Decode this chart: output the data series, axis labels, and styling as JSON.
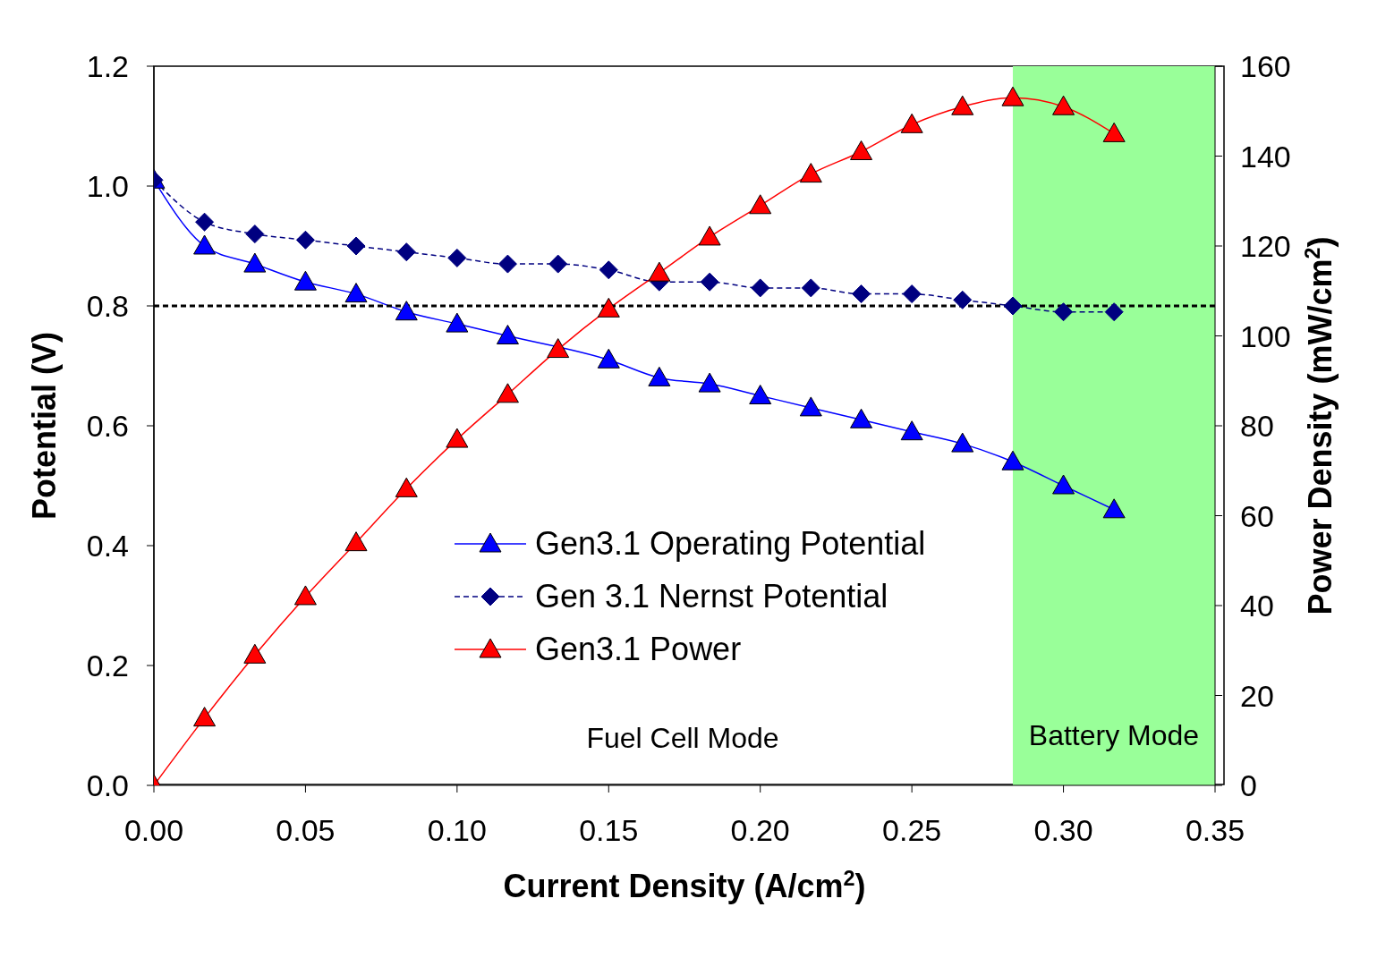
{
  "chart_data": {
    "type": "line",
    "xlabel": "Current Density (A/cm$^{2}$)",
    "ylabel": "Potential (V)",
    "y2label": "Power Density (mW/cm$^{2}$)",
    "x": [
      0,
      0.0167,
      0.0333,
      0.05,
      0.0667,
      0.0833,
      0.1,
      0.1167,
      0.1333,
      0.15,
      0.1667,
      0.1833,
      0.2,
      0.2167,
      0.2333,
      0.25,
      0.2667,
      0.2833,
      0.3,
      0.3167
    ],
    "series": [
      {
        "name": "Gen3.1 Operating Potential",
        "color": "#0000ff",
        "marker": "triangle",
        "line_style": "solid",
        "values": [
          1.01,
          0.9,
          0.87,
          0.84,
          0.82,
          0.79,
          0.77,
          0.75,
          null,
          0.71,
          0.68,
          0.67,
          0.65,
          0.63,
          0.61,
          0.59,
          0.57,
          0.54,
          0.5,
          0.46
        ]
      },
      {
        "name": "Gen 3.1 Nernst Potential",
        "color": "#000080",
        "marker": "diamond",
        "line_style": "dashed",
        "values": [
          1.01,
          0.94,
          0.92,
          0.91,
          0.9,
          0.89,
          0.88,
          0.87,
          0.87,
          0.86,
          0.84,
          0.84,
          0.83,
          0.83,
          0.82,
          0.82,
          0.81,
          0.8,
          0.79,
          0.79
        ]
      },
      {
        "name": "Gen3.1 Power",
        "color": "#ff0000",
        "marker": "triangle",
        "line_style": "solid",
        "axis": "y2",
        "values": [
          0,
          15,
          29,
          42,
          54,
          66,
          77,
          87,
          97,
          106,
          114,
          122,
          129,
          136,
          141,
          147,
          151,
          153,
          151,
          145
        ]
      }
    ],
    "xlim": [
      0,
      0.35
    ],
    "xticks": [
      {
        "value": 0,
        "label": "0.00"
      },
      {
        "value": 0.05,
        "label": "0.05"
      },
      {
        "value": 0.1,
        "label": "0.10"
      },
      {
        "value": 0.15,
        "label": "0.15"
      },
      {
        "value": 0.2,
        "label": "0.20"
      },
      {
        "value": 0.25,
        "label": "0.25"
      },
      {
        "value": 0.3,
        "label": "0.30"
      },
      {
        "value": 0.35,
        "label": "0.35"
      }
    ],
    "ylim": [
      0,
      1.2
    ],
    "yticks": [
      {
        "value": 0,
        "label": "0.0"
      },
      {
        "value": 0.2,
        "label": "0.2"
      },
      {
        "value": 0.4,
        "label": "0.4"
      },
      {
        "value": 0.6,
        "label": "0.6"
      },
      {
        "value": 0.8,
        "label": "0.8"
      },
      {
        "value": 1,
        "label": "1.0"
      },
      {
        "value": 1.2,
        "label": "1.2"
      }
    ],
    "y2lim": [
      0,
      160
    ],
    "y2ticks": [
      0,
      20,
      40,
      60,
      80,
      100,
      120,
      140,
      160
    ],
    "ref_lines": [
      {
        "axis": "y",
        "value": 0.8,
        "color": "#000000",
        "line_style": "dashed"
      }
    ],
    "bands": [
      {
        "axis": "x",
        "from": 0.2833,
        "to": 0.35,
        "label": "Battery Mode",
        "color": "#99ff99"
      }
    ],
    "annotations": [
      "Fuel Cell Mode"
    ],
    "legend": "center"
  }
}
